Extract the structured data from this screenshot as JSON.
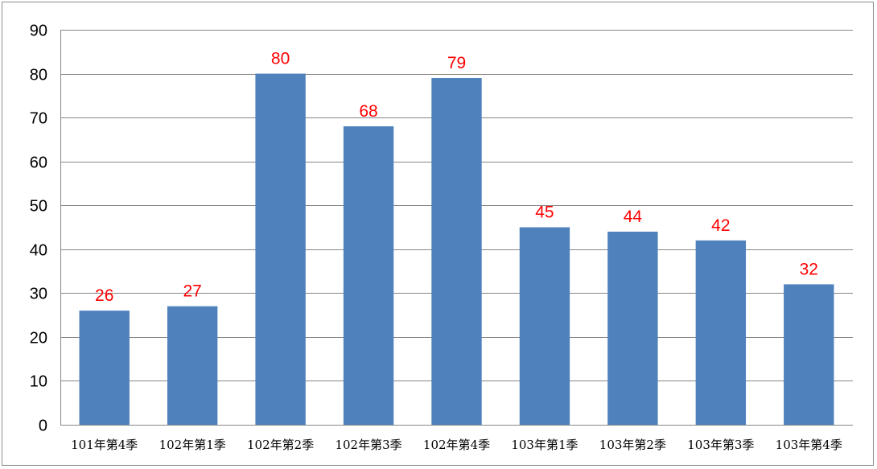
{
  "chart_data": {
    "type": "bar",
    "categories": [
      "101年第4季",
      "102年第1季",
      "102年第2季",
      "102年第3季",
      "102年第4季",
      "103年第1季",
      "103年第2季",
      "103年第3季",
      "103年第4季"
    ],
    "values": [
      26,
      27,
      80,
      68,
      79,
      45,
      44,
      42,
      32
    ],
    "ylim": [
      0,
      90
    ],
    "yticks": [
      0,
      10,
      20,
      30,
      40,
      50,
      60,
      70,
      80,
      90
    ],
    "grid": true,
    "data_labels": true,
    "legend": "none",
    "bar_color": "#4F81BD",
    "label_color": "#FF0000",
    "grid_color": "#868686"
  }
}
